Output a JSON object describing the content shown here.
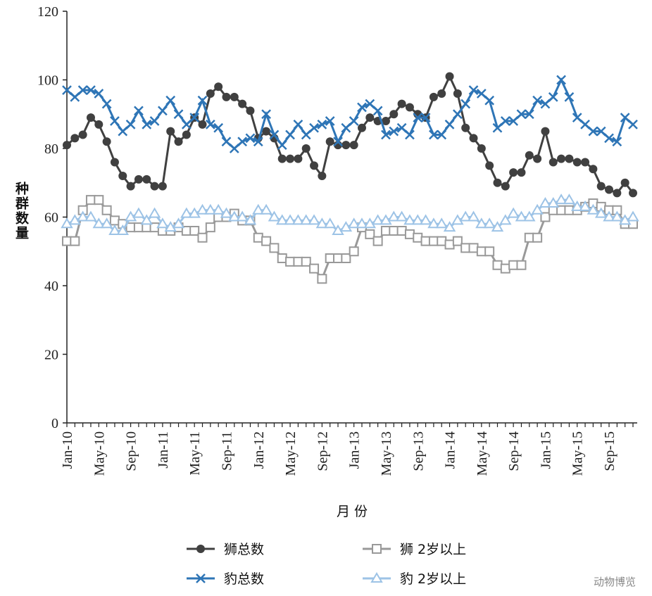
{
  "chart_data": {
    "type": "line",
    "y_label": "种群数量",
    "x_label": "月 份",
    "source": "动物博览",
    "categories": [
      "Jan-10",
      null,
      null,
      null,
      "May-10",
      null,
      null,
      null,
      "Sep-10",
      null,
      null,
      null,
      "Jan-11",
      null,
      null,
      null,
      "May-11",
      null,
      null,
      null,
      "Sep-11",
      null,
      null,
      null,
      "Jan-12",
      null,
      null,
      null,
      "May-12",
      null,
      null,
      null,
      "Sep-12",
      null,
      null,
      null,
      "Jan-13",
      null,
      null,
      null,
      "May-13",
      null,
      null,
      null,
      "Sep-13",
      null,
      null,
      null,
      "Jan-14",
      null,
      null,
      null,
      "May-14",
      null,
      null,
      null,
      "Sep-14",
      null,
      null,
      null,
      "Jan-15",
      null,
      null,
      null,
      "May-15",
      null,
      null,
      null,
      "Sep-15",
      null,
      null,
      null
    ],
    "ylim": [
      0,
      120
    ],
    "yticks": [
      0,
      20,
      40,
      60,
      80,
      100,
      120
    ],
    "series": [
      {
        "name": "狮总数",
        "color": "#404040",
        "marker": "circle",
        "values": [
          81,
          83,
          84,
          89,
          87,
          82,
          76,
          72,
          69,
          71,
          71,
          69,
          69,
          85,
          82,
          84,
          89,
          87,
          96,
          98,
          95,
          95,
          93,
          91,
          83,
          85,
          83,
          77,
          77,
          77,
          80,
          75,
          72,
          82,
          81,
          81,
          81,
          86,
          89,
          88,
          88,
          90,
          93,
          92,
          90,
          89,
          95,
          96,
          101,
          96,
          86,
          83,
          80,
          75,
          70,
          69,
          73,
          73,
          78,
          77,
          85,
          76,
          77,
          77,
          76,
          76,
          74,
          69,
          68,
          67,
          70,
          67
        ]
      },
      {
        "name": "狮 2岁以上",
        "color": "#999999",
        "marker": "square",
        "values": [
          53,
          53,
          62,
          65,
          65,
          62,
          59,
          58,
          57,
          57,
          57,
          57,
          56,
          56,
          57,
          56,
          56,
          54,
          57,
          60,
          60,
          61,
          59,
          59,
          54,
          53,
          51,
          48,
          47,
          47,
          47,
          45,
          42,
          48,
          48,
          48,
          50,
          57,
          55,
          53,
          56,
          56,
          56,
          55,
          54,
          53,
          53,
          53,
          52,
          53,
          51,
          51,
          50,
          50,
          46,
          45,
          46,
          46,
          54,
          54,
          60,
          62,
          62,
          62,
          62,
          63,
          64,
          63,
          62,
          62,
          58,
          58
        ]
      },
      {
        "name": "豹总数",
        "color": "#2e75b6",
        "marker": "x",
        "values": [
          97,
          95,
          97,
          97,
          96,
          93,
          88,
          85,
          87,
          91,
          87,
          88,
          91,
          94,
          90,
          87,
          89,
          94,
          87,
          86,
          82,
          80,
          82,
          83,
          82,
          90,
          84,
          81,
          84,
          87,
          84,
          86,
          87,
          88,
          82,
          86,
          88,
          92,
          93,
          91,
          84,
          85,
          86,
          84,
          89,
          89,
          84,
          84,
          87,
          90,
          93,
          97,
          96,
          94,
          86,
          88,
          88,
          90,
          90,
          94,
          93,
          95,
          100,
          95,
          89,
          87,
          85,
          85,
          83,
          82,
          89,
          87
        ]
      },
      {
        "name": "豹 2岁以上",
        "color": "#9dc3e6",
        "marker": "triangle",
        "values": [
          58,
          59,
          60,
          60,
          58,
          58,
          56,
          56,
          60,
          61,
          59,
          61,
          58,
          57,
          58,
          61,
          61,
          62,
          62,
          62,
          61,
          60,
          60,
          59,
          62,
          62,
          60,
          59,
          59,
          59,
          59,
          59,
          58,
          58,
          56,
          57,
          58,
          58,
          58,
          59,
          59,
          60,
          60,
          59,
          59,
          59,
          58,
          58,
          57,
          59,
          60,
          60,
          58,
          58,
          57,
          59,
          61,
          60,
          60,
          62,
          64,
          64,
          65,
          65,
          63,
          63,
          62,
          61,
          60,
          60,
          59,
          60
        ]
      }
    ]
  }
}
